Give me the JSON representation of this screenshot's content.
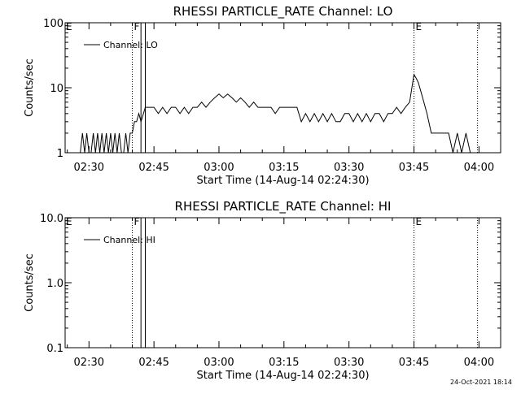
{
  "footer": {
    "timestamp": "24-Oct-2021 18:14"
  },
  "chart_data": [
    {
      "type": "line",
      "title": "RHESSI PARTICLE_RATE Channel: LO",
      "xlabel": "Start Time (14-Aug-14 02:24:30)",
      "ylabel": "Counts/sec",
      "y_scale": "log",
      "ylim": [
        1,
        100
      ],
      "y_ticks": [
        {
          "v": 1,
          "label": "1"
        },
        {
          "v": 10,
          "label": "10"
        },
        {
          "v": 100,
          "label": "100"
        }
      ],
      "xlim": [
        "02:24:30",
        "04:05:00"
      ],
      "x_ticks": [
        "02:30",
        "02:45",
        "03:00",
        "03:15",
        "03:30",
        "03:45",
        "04:00"
      ],
      "legend": {
        "position": "top-left",
        "entries": [
          "Channel: LO"
        ]
      },
      "markers": [
        {
          "time": "02:40:00",
          "label": "F",
          "style": "dotted"
        },
        {
          "time": "02:42:00",
          "label": "",
          "style": "solid"
        },
        {
          "time": "02:43:00",
          "label": "",
          "style": "solid"
        },
        {
          "time": "03:45:00",
          "label": "E",
          "style": "dotted"
        },
        {
          "time": "03:59:40",
          "label": "",
          "style": "dotted"
        }
      ],
      "edge_labels": [
        "E",
        "F"
      ],
      "series": [
        {
          "name": "Channel: LO",
          "x": [
            "02:28:00",
            "02:28:30",
            "02:29:00",
            "02:29:30",
            "02:30:00",
            "02:30:30",
            "02:31:00",
            "02:31:30",
            "02:32:00",
            "02:32:30",
            "02:33:00",
            "02:33:30",
            "02:34:00",
            "02:34:30",
            "02:35:00",
            "02:35:30",
            "02:36:00",
            "02:36:30",
            "02:37:00",
            "02:37:30",
            "02:38:00",
            "02:38:30",
            "02:39:00",
            "02:39:30",
            "02:40:00",
            "02:40:30",
            "02:41:00",
            "02:41:30",
            "02:42:00",
            "02:43:00",
            "02:44:00",
            "02:45:00",
            "02:46:00",
            "02:47:00",
            "02:48:00",
            "02:49:00",
            "02:50:00",
            "02:51:00",
            "02:52:00",
            "02:53:00",
            "02:54:00",
            "02:55:00",
            "02:56:00",
            "02:57:00",
            "02:58:00",
            "02:59:00",
            "03:00:00",
            "03:01:00",
            "03:02:00",
            "03:03:00",
            "03:04:00",
            "03:05:00",
            "03:06:00",
            "03:07:00",
            "03:08:00",
            "03:09:00",
            "03:10:00",
            "03:11:00",
            "03:12:00",
            "03:13:00",
            "03:14:00",
            "03:15:00",
            "03:16:00",
            "03:17:00",
            "03:18:00",
            "03:19:00",
            "03:20:00",
            "03:21:00",
            "03:22:00",
            "03:23:00",
            "03:24:00",
            "03:25:00",
            "03:26:00",
            "03:27:00",
            "03:28:00",
            "03:29:00",
            "03:30:00",
            "03:31:00",
            "03:32:00",
            "03:33:00",
            "03:34:00",
            "03:35:00",
            "03:36:00",
            "03:37:00",
            "03:38:00",
            "03:39:00",
            "03:40:00",
            "03:41:00",
            "03:42:00",
            "03:43:00",
            "03:44:00",
            "03:45:00",
            "03:45:30",
            "03:46:00",
            "03:47:00",
            "03:48:00",
            "03:49:00",
            "03:50:00",
            "03:51:00",
            "03:52:00",
            "03:53:00",
            "03:54:00",
            "03:55:00",
            "03:56:00",
            "03:57:00",
            "03:58:00",
            "03:59:00",
            "04:00:00"
          ],
          "values": [
            1,
            2,
            1,
            2,
            1,
            1,
            2,
            1,
            2,
            1,
            2,
            1,
            2,
            1,
            2,
            1,
            2,
            1,
            2,
            1,
            1,
            2,
            1,
            2,
            2,
            3,
            3,
            4,
            3,
            5,
            5,
            5,
            4,
            5,
            4,
            5,
            5,
            4,
            5,
            4,
            5,
            5,
            6,
            5,
            6,
            7,
            8,
            7,
            8,
            7,
            6,
            7,
            6,
            5,
            6,
            5,
            5,
            5,
            5,
            4,
            5,
            5,
            5,
            5,
            5,
            3,
            4,
            3,
            4,
            3,
            4,
            3,
            4,
            3,
            3,
            4,
            4,
            3,
            4,
            3,
            4,
            3,
            4,
            4,
            3,
            4,
            4,
            5,
            4,
            5,
            6,
            16,
            14,
            12,
            7,
            4,
            2,
            2,
            2,
            2,
            2,
            1,
            2,
            1,
            2,
            1,
            1,
            1
          ]
        }
      ]
    },
    {
      "type": "line",
      "title": "RHESSI PARTICLE_RATE Channel: HI",
      "xlabel": "Start Time (14-Aug-14 02:24:30)",
      "ylabel": "Counts/sec",
      "y_scale": "log",
      "ylim": [
        0.1,
        10
      ],
      "y_ticks": [
        {
          "v": 0.1,
          "label": "0.1"
        },
        {
          "v": 1,
          "label": "1.0"
        },
        {
          "v": 10,
          "label": "10.0"
        }
      ],
      "xlim": [
        "02:24:30",
        "04:05:00"
      ],
      "x_ticks": [
        "02:30",
        "02:45",
        "03:00",
        "03:15",
        "03:30",
        "03:45",
        "04:00"
      ],
      "legend": {
        "position": "top-left",
        "entries": [
          "Channel: HI"
        ]
      },
      "markers": [
        {
          "time": "02:40:00",
          "label": "F",
          "style": "dotted"
        },
        {
          "time": "02:42:00",
          "label": "",
          "style": "solid"
        },
        {
          "time": "02:43:00",
          "label": "",
          "style": "solid"
        },
        {
          "time": "03:45:00",
          "label": "E",
          "style": "dotted"
        },
        {
          "time": "03:59:40",
          "label": "",
          "style": "dotted"
        }
      ],
      "edge_labels": [
        "E",
        "F"
      ],
      "series": [
        {
          "name": "Channel: HI",
          "x": [],
          "values": []
        }
      ]
    }
  ]
}
